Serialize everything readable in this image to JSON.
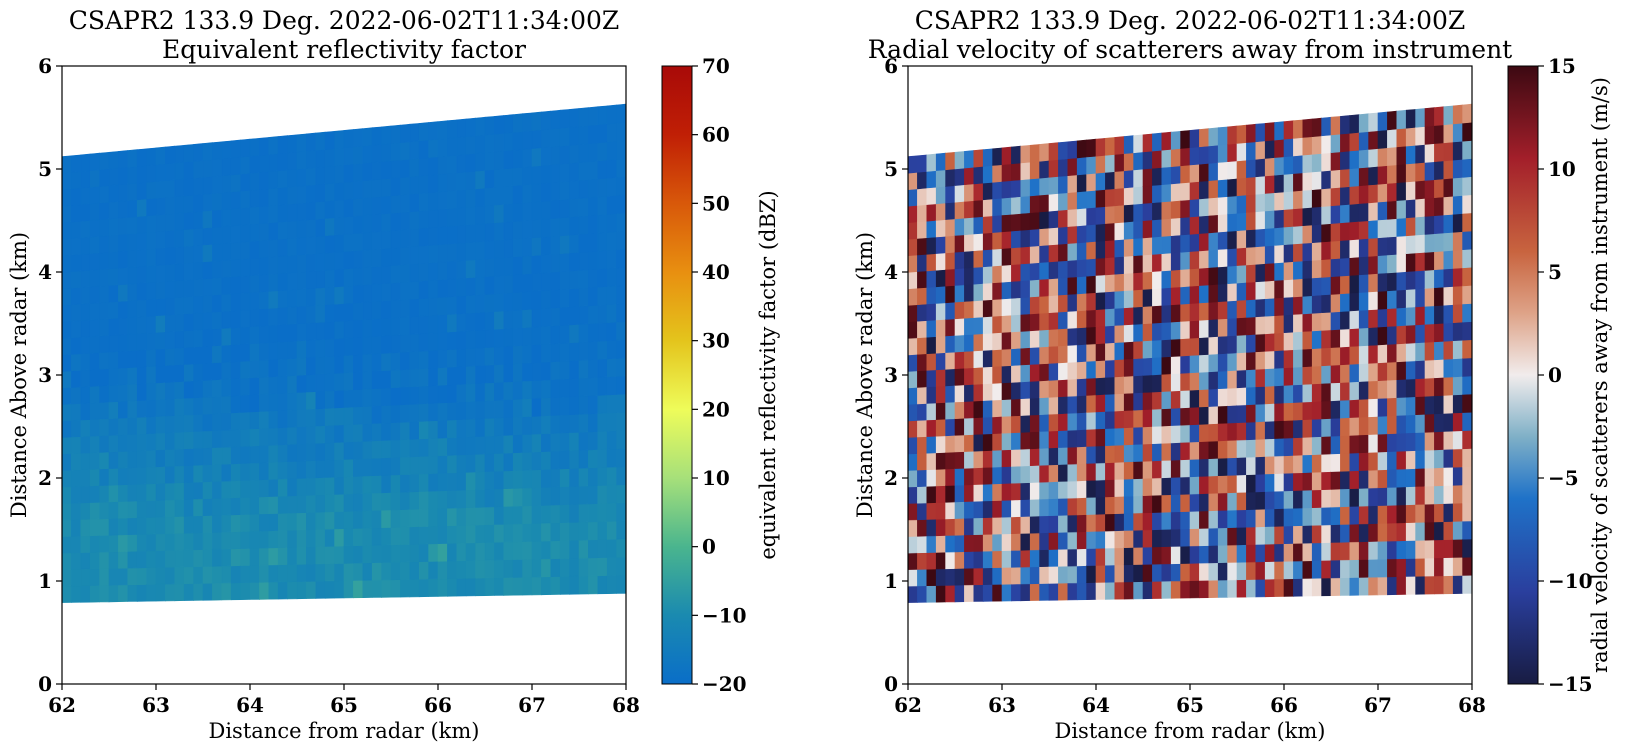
{
  "chart_data": [
    {
      "type": "heatmap",
      "title_line1": "CSAPR2 133.9 Deg. 2022-06-02T11:34:00Z",
      "title_line2": "Equivalent reflectivity factor",
      "xlabel": "Distance from radar (km)",
      "ylabel": "Distance Above radar  (km)",
      "xlim": [
        62,
        68
      ],
      "ylim": [
        0,
        6
      ],
      "xticks": [
        "62",
        "63",
        "64",
        "65",
        "66",
        "67",
        "68"
      ],
      "yticks": [
        "0",
        "1",
        "2",
        "3",
        "4",
        "5",
        "6"
      ],
      "colorbar": {
        "label": "equivalent reflectivity factor (dBZ)",
        "range": [
          -20,
          70
        ],
        "ticks": [
          "−20",
          "−10",
          "0",
          "10",
          "20",
          "30",
          "40",
          "50",
          "60",
          "70"
        ],
        "colormap": "HomeyerRainbow"
      },
      "data_region": {
        "bottom_km_at_xmin": 0.79,
        "bottom_km_at_xmax": 0.88,
        "top_km_at_xmin": 5.12,
        "top_km_at_xmax": 5.63,
        "columns": 60,
        "rows": 27
      },
      "value_profile": {
        "description": "mostly -20 dBZ above ~3 km, -8 to -12 dBZ near bottom",
        "above_km": 3.2,
        "value_high": -20,
        "below_km": 1.5,
        "value_low": -10
      }
    },
    {
      "type": "heatmap",
      "title_line1": "CSAPR2 133.9 Deg. 2022-06-02T11:34:00Z",
      "title_line2": "Radial velocity of scatterers away from instrument",
      "xlabel": "Distance from radar (km)",
      "ylabel": "Distance Above radar  (km)",
      "xlim": [
        62,
        68
      ],
      "ylim": [
        0,
        6
      ],
      "xticks": [
        "62",
        "63",
        "64",
        "65",
        "66",
        "67",
        "68"
      ],
      "yticks": [
        "0",
        "1",
        "2",
        "3",
        "4",
        "5",
        "6"
      ],
      "colorbar": {
        "label": "radial velocity of scatterers away from instrument (m/s)",
        "range": [
          -15,
          15
        ],
        "ticks": [
          "−15",
          "−10",
          "−5",
          "0",
          "5",
          "10",
          "15"
        ],
        "colormap": "balance"
      },
      "data_region": {
        "bottom_km_at_xmin": 0.79,
        "bottom_km_at_xmax": 0.88,
        "top_km_at_xmin": 5.12,
        "top_km_at_xmax": 5.63,
        "columns": 60,
        "rows": 27
      },
      "value_profile": {
        "description": "noise, values uniformly spread between -15 and 15 m/s",
        "min": -15,
        "max": 15
      }
    }
  ]
}
